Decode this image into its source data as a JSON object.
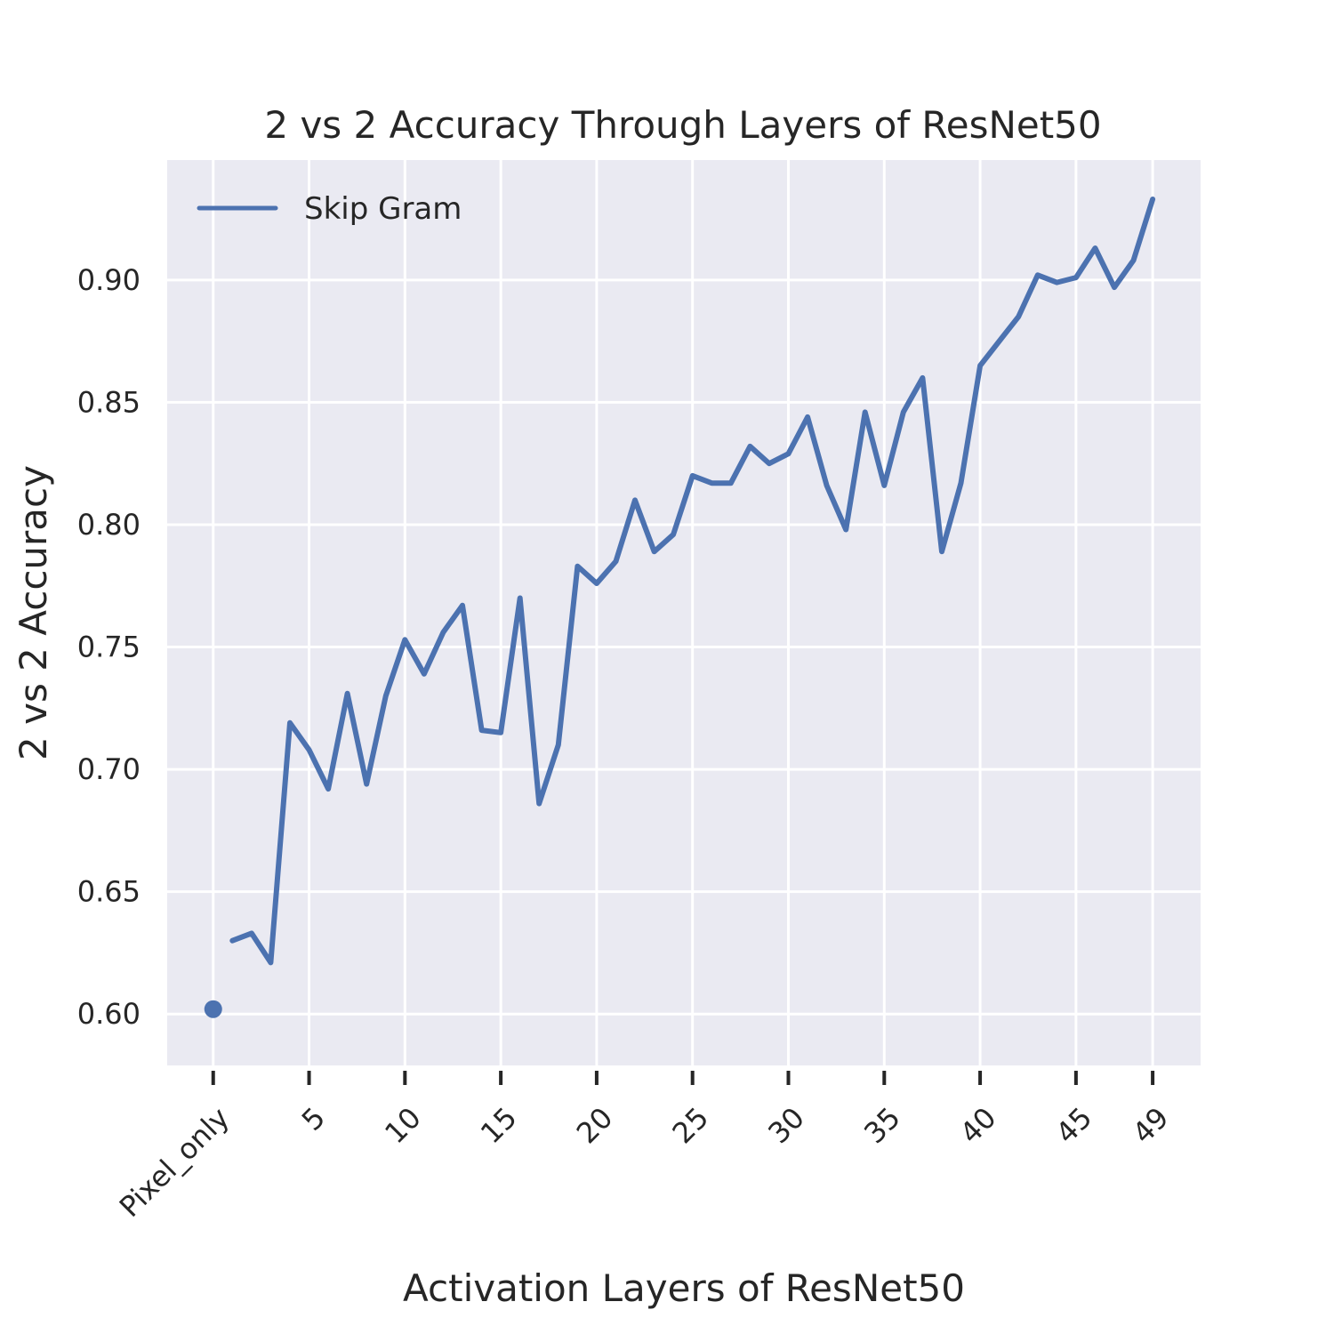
{
  "chart_data": {
    "type": "line",
    "title": "2 vs 2 Accuracy Through Layers of ResNet50",
    "xlabel": "Activation Layers of ResNet50",
    "ylabel": "2 vs 2 Accuracy",
    "xlim": [
      -2.4,
      51.5
    ],
    "ylim": [
      0.579,
      0.949
    ],
    "yticks": [
      0.6,
      0.65,
      0.7,
      0.75,
      0.8,
      0.85,
      0.9
    ],
    "ytick_labels": [
      "0.60",
      "0.65",
      "0.70",
      "0.75",
      "0.80",
      "0.85",
      "0.90"
    ],
    "xticks": [
      0,
      5,
      10,
      15,
      20,
      25,
      30,
      35,
      40,
      45,
      49
    ],
    "xtick_labels": [
      "Pixel_only",
      "5",
      "10",
      "15",
      "20",
      "25",
      "30",
      "35",
      "40",
      "45",
      "49"
    ],
    "grid": true,
    "legend_position": "top-left",
    "background": "#eaeaf2",
    "series": [
      {
        "name": "Skip Gram",
        "color": "#4c72b0",
        "x": [
          1,
          2,
          3,
          4,
          5,
          6,
          7,
          8,
          9,
          10,
          11,
          12,
          13,
          14,
          15,
          16,
          17,
          18,
          19,
          20,
          21,
          22,
          23,
          24,
          25,
          26,
          27,
          28,
          29,
          30,
          31,
          32,
          33,
          34,
          35,
          36,
          37,
          38,
          39,
          40,
          41,
          42,
          43,
          44,
          45,
          46,
          47,
          48,
          49
        ],
        "y": [
          0.63,
          0.633,
          0.621,
          0.719,
          0.708,
          0.692,
          0.731,
          0.694,
          0.73,
          0.753,
          0.739,
          0.756,
          0.767,
          0.716,
          0.715,
          0.77,
          0.686,
          0.71,
          0.783,
          0.776,
          0.785,
          0.81,
          0.789,
          0.796,
          0.82,
          0.817,
          0.817,
          0.832,
          0.825,
          0.829,
          0.844,
          0.816,
          0.798,
          0.846,
          0.816,
          0.846,
          0.86,
          0.789,
          0.817,
          0.865,
          0.875,
          0.885,
          0.902,
          0.899,
          0.901,
          0.913,
          0.897,
          0.908,
          0.933
        ]
      }
    ],
    "points": [
      {
        "x": 0,
        "y": 0.602,
        "color": "#4c72b0"
      }
    ]
  }
}
